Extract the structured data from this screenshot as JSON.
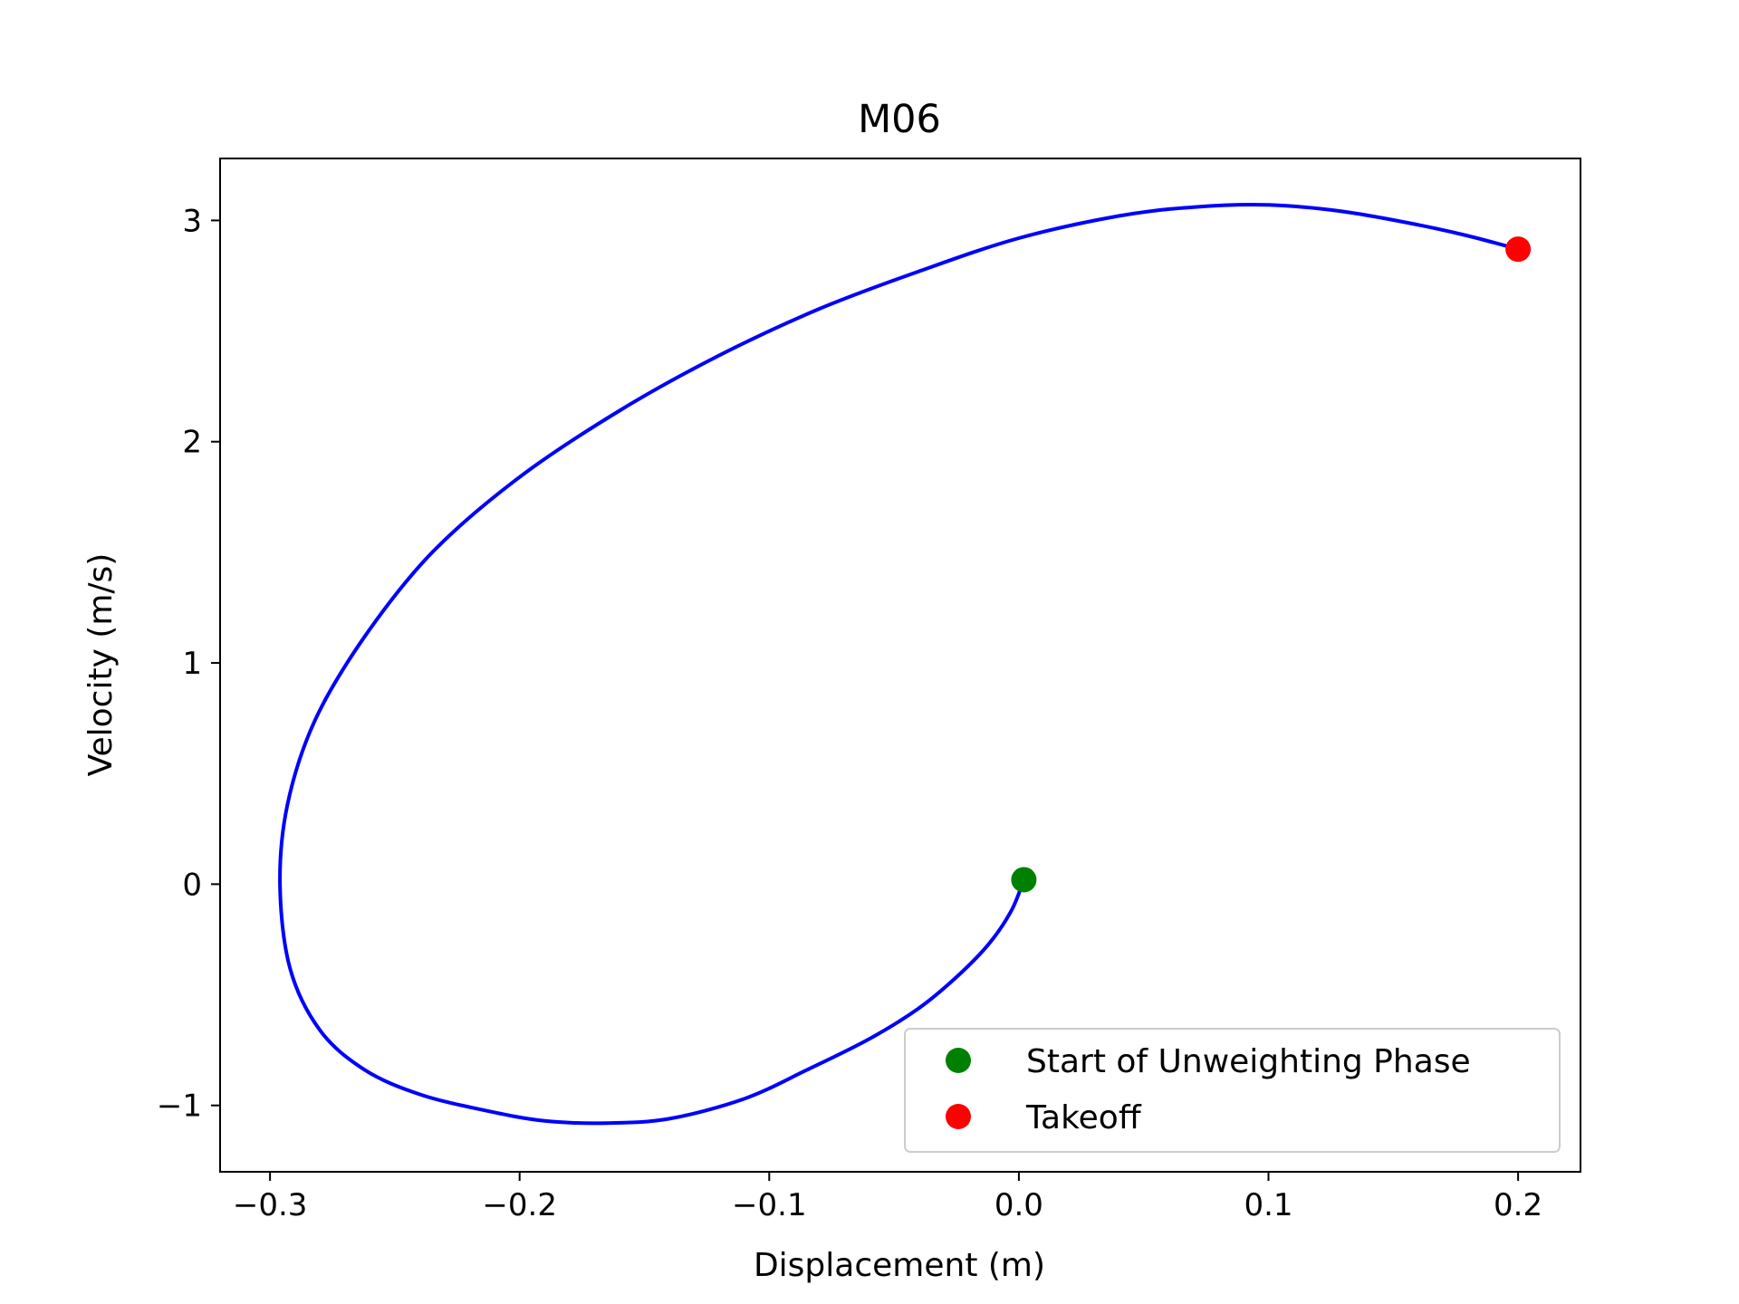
{
  "chart_data": {
    "type": "line",
    "title": "M06",
    "xlabel": "Displacement (m)",
    "ylabel": "Velocity (m/s)",
    "xlim": [
      -0.32,
      0.225
    ],
    "ylim": [
      -1.3,
      3.28
    ],
    "xticks": [
      -0.3,
      -0.2,
      -0.1,
      0.0,
      0.1,
      0.2
    ],
    "xtick_labels": [
      "−0.3",
      "−0.2",
      "−0.1",
      "0.0",
      "0.1",
      "0.2"
    ],
    "yticks": [
      -1,
      0,
      1,
      2,
      3
    ],
    "ytick_labels": [
      "−1",
      "0",
      "1",
      "2",
      "3"
    ],
    "grid": false,
    "legend_position": "lower-right",
    "series": [
      {
        "color": "#0000ff",
        "x": [
          0.002,
          -0.003,
          -0.012,
          -0.025,
          -0.04,
          -0.06,
          -0.085,
          -0.11,
          -0.14,
          -0.165,
          -0.19,
          -0.215,
          -0.24,
          -0.262,
          -0.28,
          -0.292,
          -0.296,
          -0.293,
          -0.282,
          -0.262,
          -0.235,
          -0.2,
          -0.16,
          -0.12,
          -0.08,
          -0.04,
          0.0,
          0.04,
          0.07,
          0.1,
          0.13,
          0.16,
          0.18,
          0.2
        ],
        "y": [
          0.02,
          -0.12,
          -0.27,
          -0.42,
          -0.56,
          -0.7,
          -0.84,
          -0.97,
          -1.06,
          -1.08,
          -1.07,
          -1.02,
          -0.95,
          -0.84,
          -0.66,
          -0.38,
          0.0,
          0.36,
          0.74,
          1.12,
          1.5,
          1.84,
          2.14,
          2.39,
          2.6,
          2.77,
          2.92,
          3.02,
          3.06,
          3.07,
          3.04,
          2.98,
          2.93,
          2.87
        ]
      }
    ],
    "markers": [
      {
        "name": "Start of Unweighting Phase",
        "x": 0.002,
        "y": 0.02,
        "color": "#008000"
      },
      {
        "name": "Takeoff",
        "x": 0.2,
        "y": 2.87,
        "color": "#ff0000"
      }
    ]
  }
}
